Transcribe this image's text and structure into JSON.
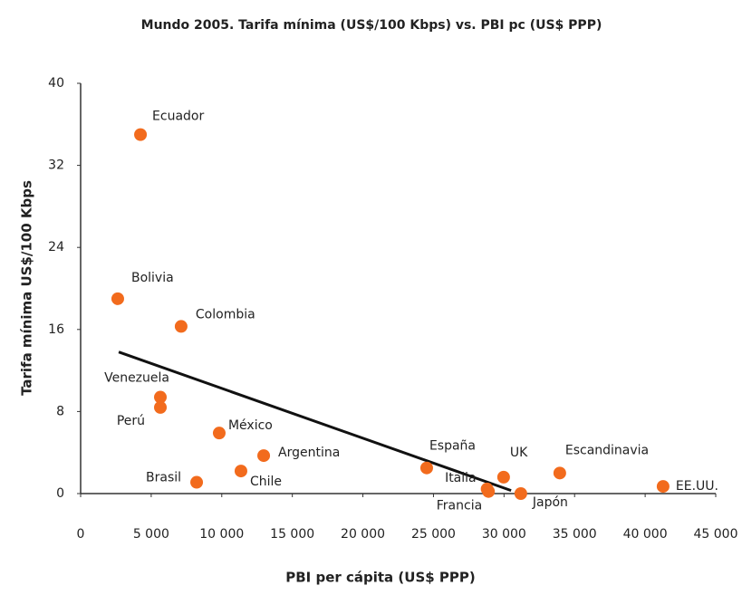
{
  "chart_data": {
    "type": "scatter",
    "title": "Mundo 2005. Tarifa mínima (US$/100 Kbps) vs. PBI pc (US$ PPP)",
    "xlabel": "PBI per cápita (US$ PPP)",
    "ylabel": "Tarifa mínima US$/100 Kbps",
    "point_labels": [
      "Ecuador",
      "Bolivia",
      "Colombia",
      "Venezuela",
      "Perú",
      "México",
      "Argentina",
      "Brasil",
      "Chile",
      "España",
      "Italia",
      "Francia",
      "Japón",
      "UK",
      "Escandinavia",
      "EE.UU."
    ],
    "x": [
      4240,
      2630,
      7120,
      5650,
      5650,
      9820,
      12970,
      8220,
      11360,
      24520,
      28800,
      28900,
      31190,
      29970,
      33950,
      41270
    ],
    "values": [
      35,
      19,
      16.3,
      9.4,
      8.4,
      5.9,
      3.7,
      1.1,
      2.2,
      2.5,
      0.45,
      0.2,
      0,
      1.6,
      2,
      0.7
    ],
    "color": "#f26b1d",
    "trendline": {
      "x": [
        2700,
        30500
      ],
      "values": [
        13.8,
        0.3
      ],
      "color": "#111111"
    },
    "xlim": [
      0,
      45000
    ],
    "xticks": [
      0,
      {
        "value": 5000,
        "label": "5 000"
      },
      {
        "value": 10000,
        "label": "10 000"
      },
      {
        "value": 15000,
        "label": "15 000"
      },
      {
        "value": 20000,
        "label": "20 000"
      },
      {
        "value": 25000,
        "label": "25 000"
      },
      {
        "value": 30000,
        "label": "30 000"
      },
      {
        "value": 35000,
        "label": "35 000"
      },
      {
        "value": 40000,
        "label": "40 000"
      },
      {
        "value": 45000,
        "label": "45 000"
      }
    ],
    "ylim": [
      0,
      40
    ],
    "yticks": [
      0,
      8,
      16,
      24,
      32,
      40
    ],
    "grid": false
  }
}
